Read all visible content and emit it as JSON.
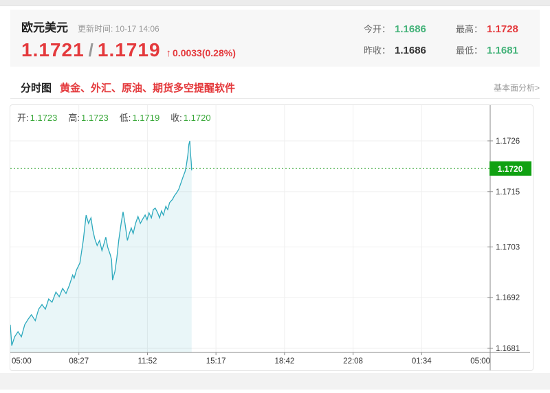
{
  "header": {
    "title": "欧元美元",
    "update_label": "更新时间: 10-17 14:06",
    "bid": "1.1721",
    "slash": "/",
    "ask": "1.1719",
    "arrow": "↑",
    "change": "0.0033(0.28%)",
    "stats": [
      {
        "label": "今开：",
        "value": "1.1686",
        "color": "green"
      },
      {
        "label": "最高：",
        "value": "1.1728",
        "color": "red"
      },
      {
        "label": "昨收：",
        "value": "1.1686",
        "color": "dark"
      },
      {
        "label": "最低：",
        "value": "1.1681",
        "color": "green"
      }
    ],
    "colors": {
      "red": "#e4393c",
      "green": "#45b37a",
      "dark": "#333333"
    }
  },
  "tabs": {
    "active": "分时图",
    "ad": "黄金、外汇、原油、期货多空提醒软件",
    "right_link": "基本面分析>"
  },
  "chart": {
    "legend": [
      {
        "label": "开:",
        "value": "1.1723"
      },
      {
        "label": "高:",
        "value": "1.1723"
      },
      {
        "label": "低:",
        "value": "1.1719"
      },
      {
        "label": "收:",
        "value": "1.1720"
      }
    ],
    "current_price_label": "1.1720"
  },
  "chart_data": {
    "type": "area",
    "title": "欧元美元 分时图 (intraday)",
    "x_ticks": [
      "05:00",
      "08:27",
      "11:52",
      "15:17",
      "18:42",
      "22:08",
      "01:34",
      "05:00"
    ],
    "y_ticks": [
      1.1726,
      1.1715,
      1.1703,
      1.1692,
      1.1681
    ],
    "current_price": 1.172,
    "grid": true,
    "legend_position": "top-left",
    "series": [
      {
        "name": "price",
        "points": [
          [
            0.0,
            1.16861
          ],
          [
            0.003,
            1.16816
          ],
          [
            0.009,
            1.16835
          ],
          [
            0.016,
            1.16846
          ],
          [
            0.023,
            1.16835
          ],
          [
            0.03,
            1.16861
          ],
          [
            0.037,
            1.16873
          ],
          [
            0.044,
            1.16883
          ],
          [
            0.052,
            1.1687
          ],
          [
            0.059,
            1.16895
          ],
          [
            0.066,
            1.16905
          ],
          [
            0.073,
            1.16895
          ],
          [
            0.08,
            1.16917
          ],
          [
            0.087,
            1.1691
          ],
          [
            0.095,
            1.16932
          ],
          [
            0.102,
            1.16922
          ],
          [
            0.109,
            1.1694
          ],
          [
            0.116,
            1.16929
          ],
          [
            0.123,
            1.16947
          ],
          [
            0.13,
            1.16969
          ],
          [
            0.133,
            1.16962
          ],
          [
            0.138,
            1.1698
          ],
          [
            0.145,
            1.16995
          ],
          [
            0.152,
            1.17044
          ],
          [
            0.158,
            1.17099
          ],
          [
            0.163,
            1.17081
          ],
          [
            0.168,
            1.17093
          ],
          [
            0.172,
            1.17066
          ],
          [
            0.176,
            1.17048
          ],
          [
            0.181,
            1.17033
          ],
          [
            0.186,
            1.17044
          ],
          [
            0.191,
            1.17022
          ],
          [
            0.195,
            1.17036
          ],
          [
            0.199,
            1.17051
          ],
          [
            0.203,
            1.17029
          ],
          [
            0.208,
            1.17014
          ],
          [
            0.211,
            1.17002
          ],
          [
            0.213,
            1.16958
          ],
          [
            0.218,
            1.16977
          ],
          [
            0.222,
            1.17007
          ],
          [
            0.226,
            1.17044
          ],
          [
            0.231,
            1.17081
          ],
          [
            0.235,
            1.17106
          ],
          [
            0.239,
            1.17081
          ],
          [
            0.244,
            1.17044
          ],
          [
            0.248,
            1.17059
          ],
          [
            0.252,
            1.17071
          ],
          [
            0.256,
            1.17059
          ],
          [
            0.261,
            1.17081
          ],
          [
            0.266,
            1.17096
          ],
          [
            0.271,
            1.17081
          ],
          [
            0.275,
            1.17089
          ],
          [
            0.281,
            1.17099
          ],
          [
            0.285,
            1.17089
          ],
          [
            0.289,
            1.17104
          ],
          [
            0.294,
            1.17093
          ],
          [
            0.298,
            1.17111
          ],
          [
            0.302,
            1.17114
          ],
          [
            0.307,
            1.17104
          ],
          [
            0.311,
            1.17093
          ],
          [
            0.315,
            1.17108
          ],
          [
            0.319,
            1.17099
          ],
          [
            0.324,
            1.17118
          ],
          [
            0.328,
            1.17111
          ],
          [
            0.332,
            1.17126
          ],
          [
            0.338,
            1.17133
          ],
          [
            0.342,
            1.17141
          ],
          [
            0.347,
            1.17148
          ],
          [
            0.351,
            1.17155
          ],
          [
            0.355,
            1.17167
          ],
          [
            0.36,
            1.17182
          ],
          [
            0.364,
            1.17193
          ],
          [
            0.367,
            1.17208
          ],
          [
            0.37,
            1.1723
          ],
          [
            0.372,
            1.17252
          ],
          [
            0.374,
            1.1726
          ],
          [
            0.375,
            1.17238
          ],
          [
            0.377,
            1.17215
          ],
          [
            0.378,
            1.17196
          ]
        ]
      }
    ],
    "colors": {
      "line": "#2ca9bd",
      "fill": "rgba(44,169,189,0.10)",
      "dashed_price_line": "#3aa83a",
      "price_box": "#10a112",
      "price_box_text": "#ffffff",
      "grid": "#efefef",
      "axis": "#888888",
      "tick_label": "#333333"
    }
  }
}
